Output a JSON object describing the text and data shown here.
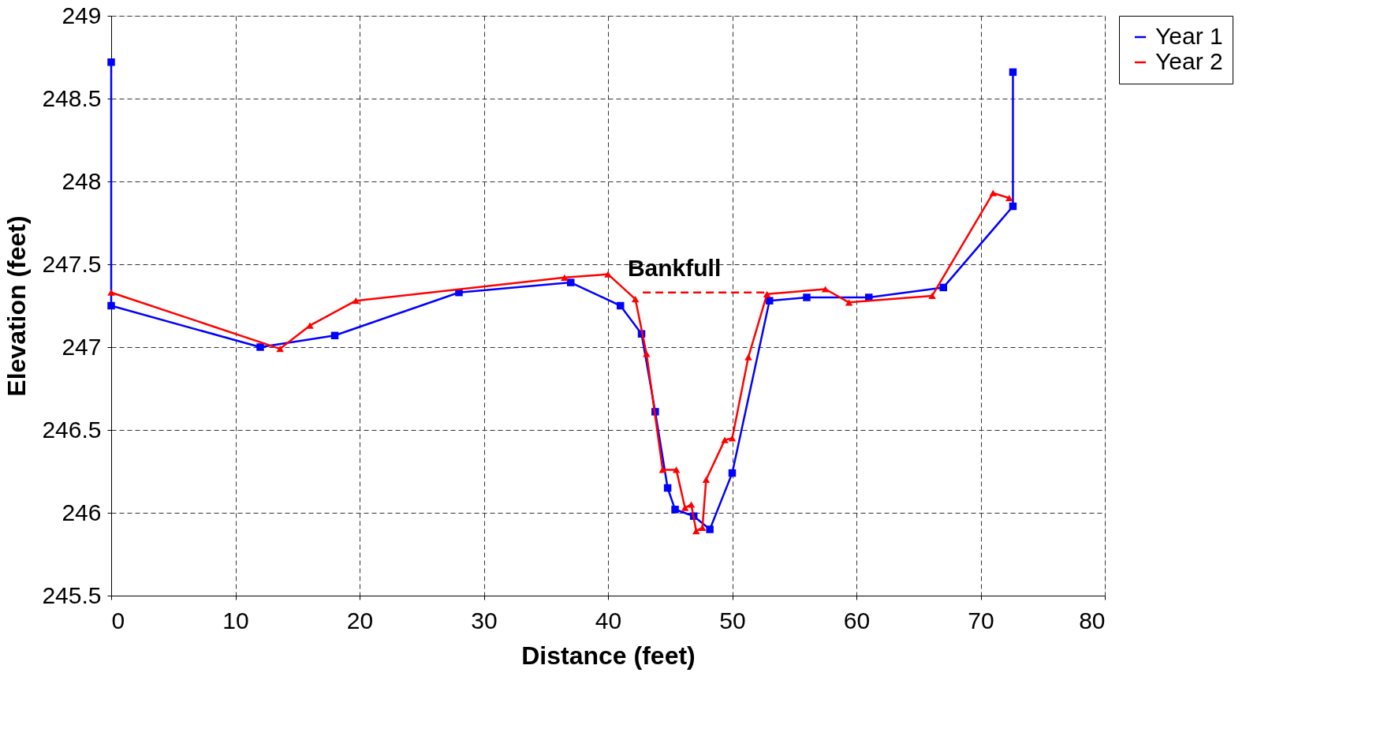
{
  "chart_data": {
    "type": "line",
    "xlabel": "Distance (feet)",
    "ylabel": "Elevation (feet)",
    "xlim": [
      0,
      80
    ],
    "xticks": [
      0,
      10,
      20,
      30,
      40,
      50,
      60,
      70,
      80
    ],
    "ylim": [
      245.5,
      249
    ],
    "yticks": [
      245.5,
      246,
      246.5,
      247,
      247.5,
      248,
      248.5,
      249
    ],
    "grid": true,
    "legend": "right",
    "line_style": "solid",
    "series": [
      {
        "name": "Year 1",
        "color": "#0000ff",
        "marker": "square",
        "x": [
          0,
          0,
          12,
          18,
          28,
          37,
          41,
          42.7,
          43.8,
          44.8,
          45.4,
          46.9,
          48.2,
          50,
          53,
          56,
          61,
          67,
          72.6,
          72.6
        ],
        "values": [
          248.72,
          247.25,
          247.0,
          247.07,
          247.33,
          247.39,
          247.25,
          247.08,
          246.61,
          246.15,
          246.02,
          245.98,
          245.9,
          246.24,
          247.28,
          247.3,
          247.3,
          247.36,
          247.85,
          248.66
        ]
      },
      {
        "name": "Year 2",
        "color": "#ff0000",
        "marker": "triangle",
        "x": [
          0,
          13.6,
          16,
          19.7,
          36.5,
          40,
          42.2,
          43.1,
          44.4,
          45.5,
          46.2,
          46.7,
          47.1,
          47.6,
          47.9,
          49.4,
          50,
          51.3,
          52.8,
          57.5,
          59.4,
          66.1,
          71,
          72.3
        ],
        "values": [
          247.33,
          246.99,
          247.13,
          247.28,
          247.42,
          247.44,
          247.29,
          246.96,
          246.26,
          246.26,
          246.03,
          246.05,
          245.89,
          245.91,
          246.2,
          246.44,
          246.45,
          246.94,
          247.32,
          247.35,
          247.27,
          247.31,
          247.93,
          247.9
        ]
      },
      {
        "name": "Bankfull",
        "color": "#ff0000",
        "marker": "none",
        "line_style": "dashed",
        "x": [
          42.8,
          52.8
        ],
        "values": [
          247.33,
          247.33
        ]
      }
    ]
  }
}
